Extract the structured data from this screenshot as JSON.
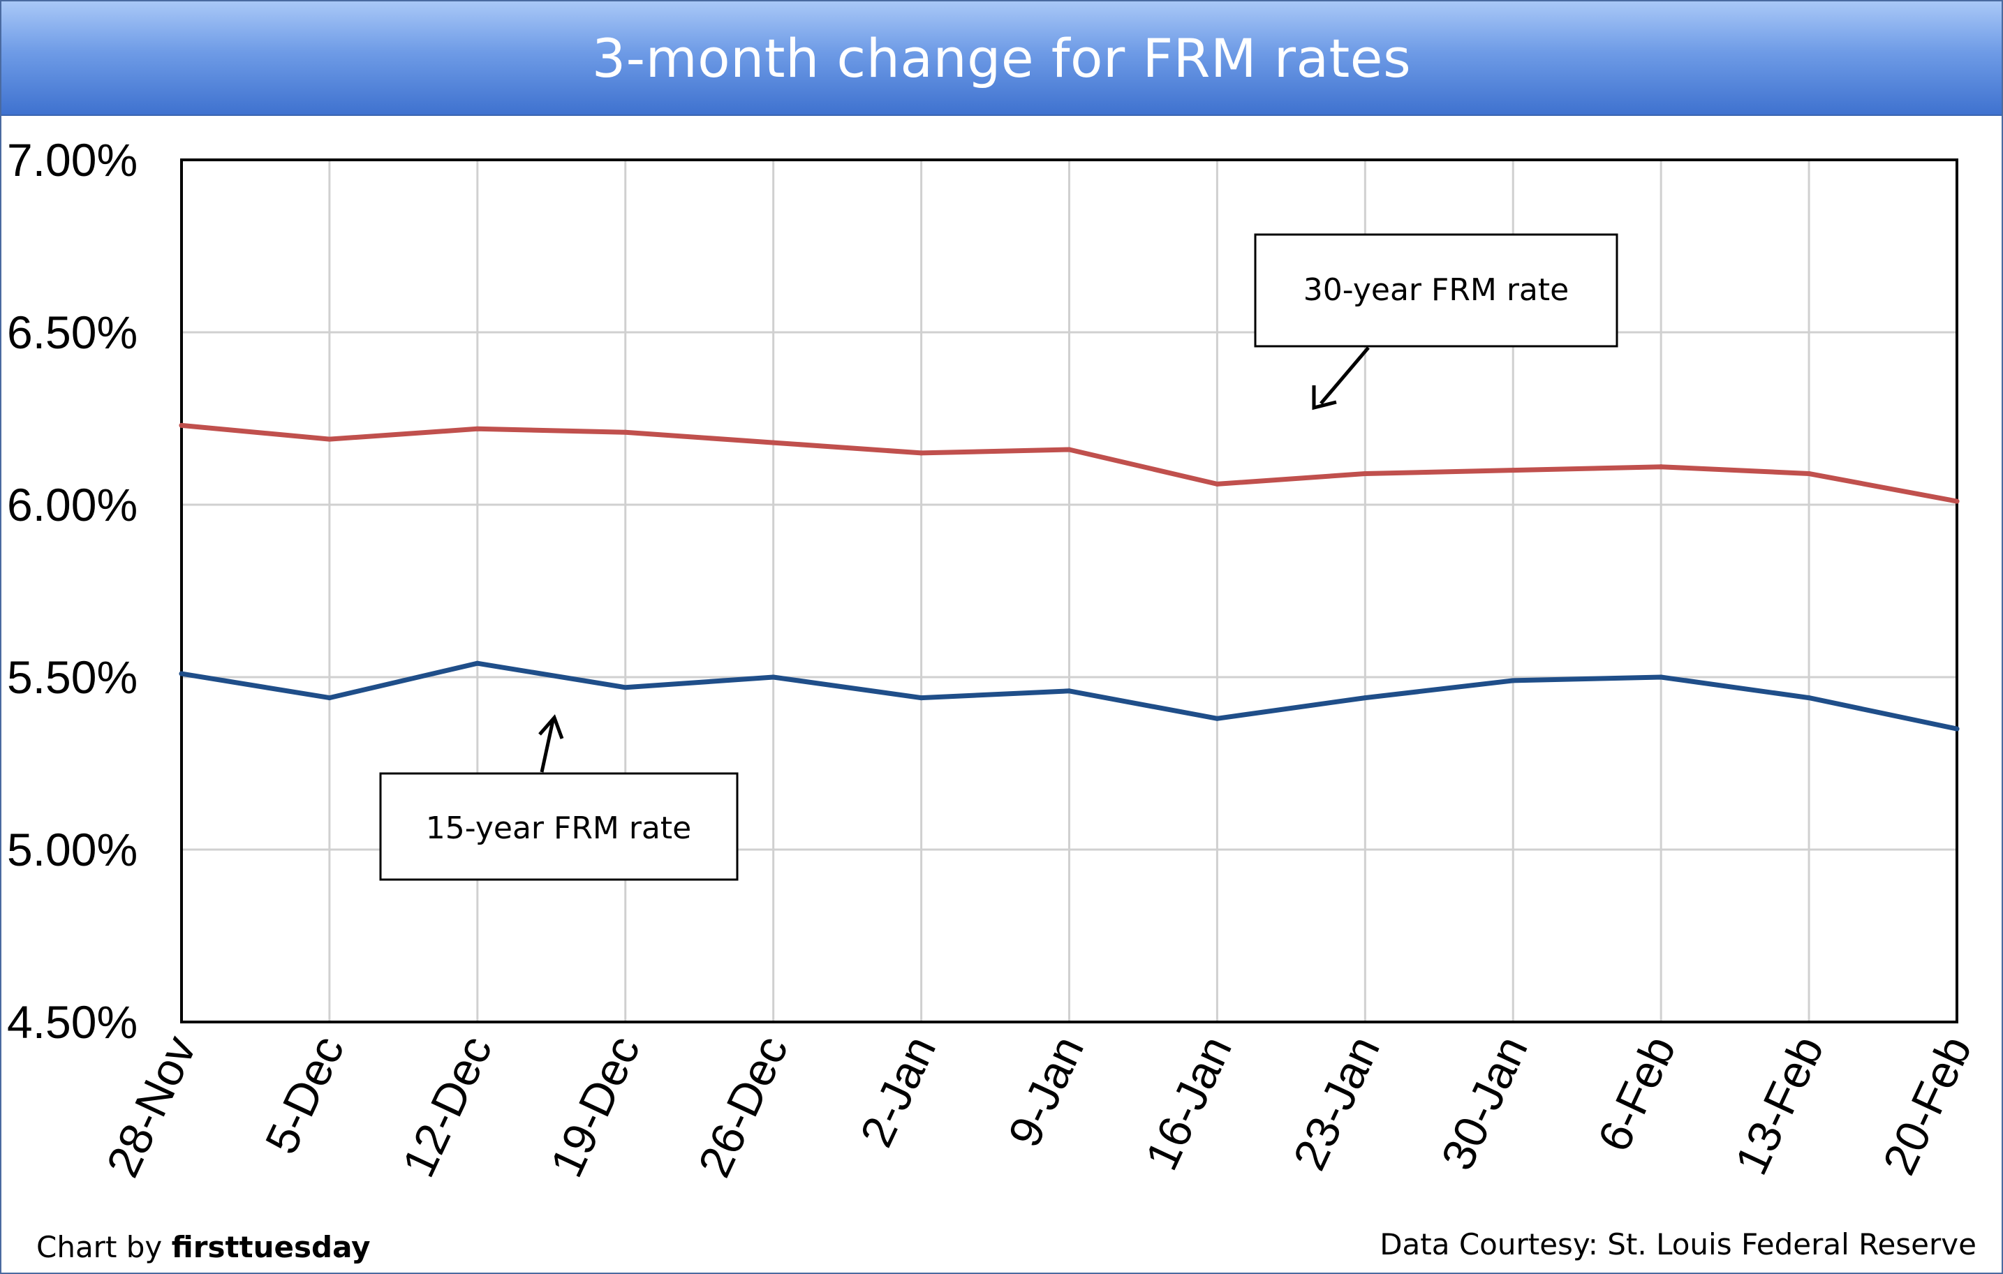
{
  "chart_data": {
    "type": "line",
    "title": "3-month change for FRM rates",
    "categories": [
      "28-Nov",
      "5-Dec",
      "12-Dec",
      "19-Dec",
      "26-Dec",
      "2-Jan",
      "9-Jan",
      "16-Jan",
      "23-Jan",
      "30-Jan",
      "6-Feb",
      "13-Feb",
      "20-Feb"
    ],
    "series": [
      {
        "name": "30-year FRM rate",
        "color": "#c0504d",
        "values": [
          6.23,
          6.19,
          6.22,
          6.21,
          6.18,
          6.15,
          6.16,
          6.06,
          6.09,
          6.1,
          6.11,
          6.09,
          6.01
        ]
      },
      {
        "name": "15-year FRM rate",
        "color": "#1f4e89",
        "values": [
          5.51,
          5.44,
          5.54,
          5.47,
          5.5,
          5.44,
          5.46,
          5.38,
          5.44,
          5.49,
          5.5,
          5.44,
          5.35
        ]
      }
    ],
    "y_ticks": [
      "7.00%",
      "6.50%",
      "6.00%",
      "5.50%",
      "5.00%",
      "4.50%"
    ],
    "ylim": [
      4.5,
      7.0
    ],
    "grid": true,
    "xlabel": "",
    "ylabel": ""
  },
  "annotations": {
    "thirty_year_label": "30-year FRM rate",
    "fifteen_year_label": "15-year FRM rate"
  },
  "footer": {
    "credit_prefix": "Chart by ",
    "credit_brand": "firsttuesday",
    "source": "Data Courtesy: St. Louis Federal Reserve"
  },
  "colors": {
    "title_bar": "#4f81d8",
    "grid": "#d0d0d0"
  }
}
